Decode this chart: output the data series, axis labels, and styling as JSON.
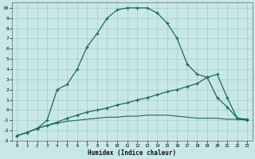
{
  "bg_color": "#c8e8e8",
  "line_color": "#1a6b5a",
  "grid_color": "#a0cccc",
  "xlim": [
    -0.5,
    23.5
  ],
  "ylim": [
    -3,
    10.5
  ],
  "xlabel": "Humidex (Indice chaleur)",
  "xtick_vals": [
    0,
    1,
    2,
    3,
    4,
    5,
    6,
    7,
    8,
    9,
    10,
    11,
    12,
    13,
    14,
    15,
    16,
    17,
    18,
    19,
    20,
    21,
    22,
    23
  ],
  "ytick_vals": [
    -3,
    -2,
    -1,
    0,
    1,
    2,
    3,
    4,
    5,
    6,
    7,
    8,
    9,
    10
  ],
  "curve_bell_x": [
    0,
    1,
    2,
    3,
    4,
    5,
    6,
    7,
    8,
    9,
    10,
    11,
    12,
    13,
    14,
    15,
    16,
    17,
    18,
    19,
    20,
    21,
    22,
    23
  ],
  "curve_bell_y": [
    -2.5,
    -2.2,
    -1.8,
    -1.0,
    2.0,
    2.5,
    4.0,
    6.2,
    7.5,
    9.0,
    9.8,
    10.0,
    10.0,
    10.0,
    9.5,
    8.5,
    7.0,
    4.5,
    3.5,
    3.2,
    1.2,
    0.3,
    -0.8,
    -1.0
  ],
  "curve_mid_x": [
    0,
    1,
    2,
    3,
    4,
    5,
    6,
    7,
    8,
    9,
    10,
    11,
    12,
    13,
    14,
    15,
    16,
    17,
    18,
    19,
    20,
    21,
    22,
    23
  ],
  "curve_mid_y": [
    -2.5,
    -2.2,
    -1.8,
    -1.5,
    -1.2,
    -0.8,
    -0.5,
    -0.2,
    0.0,
    0.2,
    0.5,
    0.7,
    1.0,
    1.2,
    1.5,
    1.8,
    2.0,
    2.3,
    2.6,
    3.2,
    3.5,
    1.2,
    -0.8,
    -0.9
  ],
  "curve_flat_x": [
    0,
    1,
    2,
    3,
    4,
    5,
    6,
    7,
    8,
    9,
    10,
    11,
    12,
    13,
    14,
    15,
    16,
    17,
    18,
    19,
    20,
    21,
    22,
    23
  ],
  "curve_flat_y": [
    -2.5,
    -2.2,
    -1.8,
    -1.5,
    -1.3,
    -1.1,
    -1.0,
    -0.9,
    -0.8,
    -0.7,
    -0.7,
    -0.6,
    -0.6,
    -0.5,
    -0.5,
    -0.5,
    -0.6,
    -0.7,
    -0.8,
    -0.8,
    -0.8,
    -0.9,
    -0.9,
    -1.0
  ]
}
